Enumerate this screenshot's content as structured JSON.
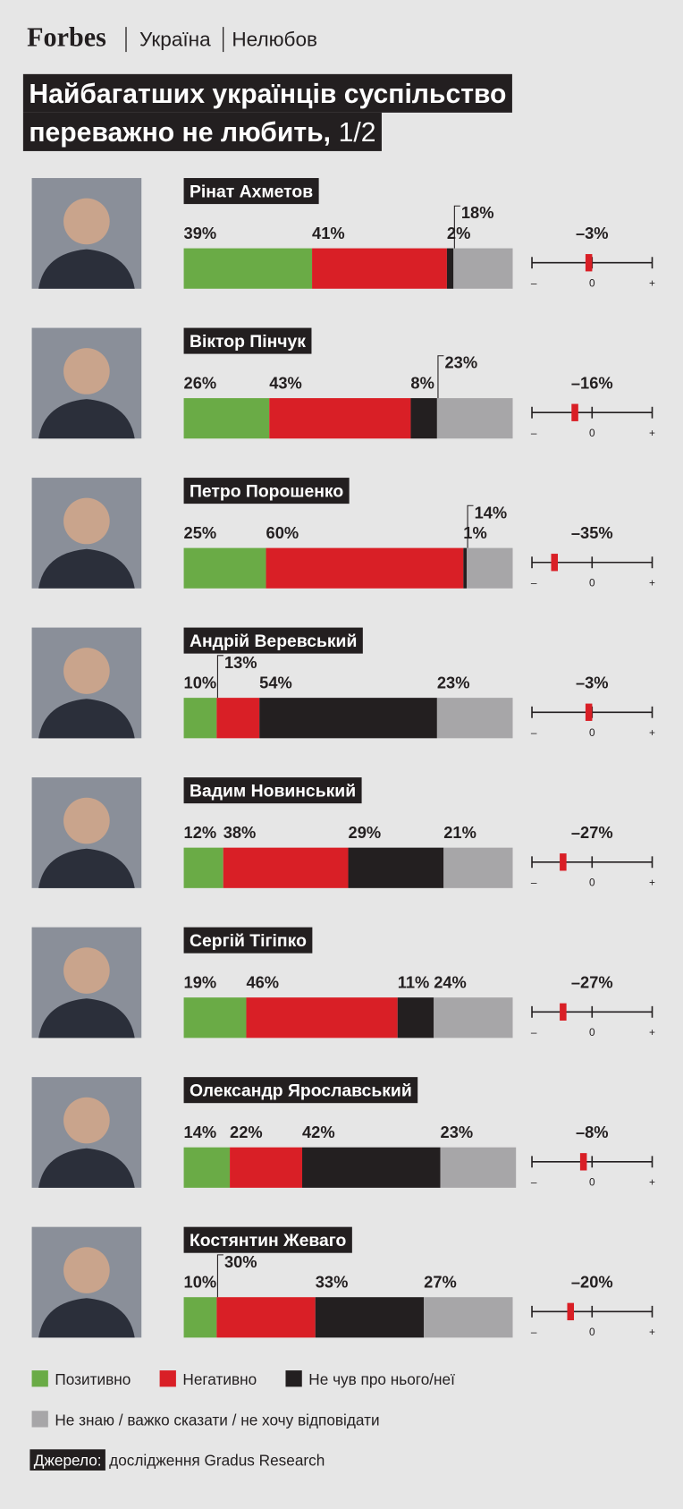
{
  "header": {
    "brand": "Forbes",
    "section": "Україна",
    "topic": "Нелюбов"
  },
  "title": {
    "lines": [
      "Найбагатших українців суспільство",
      "переважно не любить,"
    ],
    "part": "1/2"
  },
  "chart_data": [
    {
      "type": "stacked-bar",
      "categories": [
        "Рінат Ахметов",
        "Віктор Пінчук",
        "Петро Порошенко",
        "Андрій Веревський",
        "Вадим Новинський",
        "Сергій Тігіпко",
        "Олександр Ярославський",
        "Костянтин Жеваго"
      ],
      "xlim": [
        0,
        100
      ],
      "series": [
        {
          "name": "Позитивно",
          "color": "#6aab46",
          "values": [
            39,
            26,
            25,
            10,
            12,
            19,
            14,
            10
          ],
          "value_labels": [
            "39%",
            "26%",
            "25%",
            "10%",
            "12%",
            "19%",
            "14%",
            "10%"
          ]
        },
        {
          "name": "Негативно",
          "color": "#d91f26",
          "values": [
            41,
            43,
            60,
            13,
            38,
            46,
            22,
            30
          ],
          "value_labels": [
            "41%",
            "43%",
            "60%",
            "13%",
            "38%",
            "46%",
            "22%",
            "30%"
          ]
        },
        {
          "name": "Не чув про нього/неї",
          "color": "#231f20",
          "values": [
            2,
            8,
            1,
            54,
            29,
            11,
            42,
            33
          ],
          "value_labels": [
            "2%",
            "8%",
            "1%",
            "54%",
            "29%",
            "11%",
            "42%",
            "33%"
          ]
        },
        {
          "name": "Не знаю / важко сказати / не хочу відповідати",
          "color": "#a7a6a8",
          "values": [
            18,
            23,
            14,
            23,
            21,
            24,
            23,
            27
          ],
          "value_labels": [
            "18%",
            "23%",
            "14%",
            "23%",
            "21%",
            "24%",
            "23%",
            "27%"
          ]
        }
      ]
    },
    {
      "type": "balance",
      "color": "#d91f26",
      "values": [
        -3,
        -16,
        -35,
        -3,
        -27,
        -27,
        -8,
        -20
      ],
      "value_labels": [
        "–3%",
        "–16%",
        "–35%",
        "–3%",
        "–27%",
        "–27%",
        "–8%",
        "–20%"
      ],
      "xlim": [
        -56,
        56
      ],
      "xticks": [
        {
          "value": -56,
          "label": "–"
        },
        0,
        {
          "value": 56,
          "label": "+"
        }
      ]
    }
  ],
  "source": {
    "label": "Джерело:",
    "text": "дослідження Gradus Research"
  }
}
